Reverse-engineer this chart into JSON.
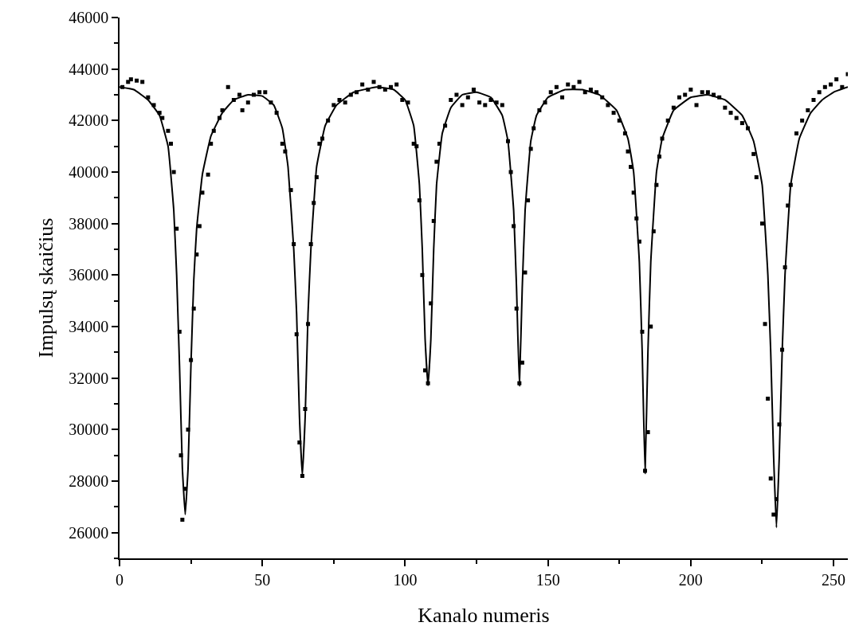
{
  "chart_data": {
    "type": "scatter",
    "xlabel": "Kanalo numeris",
    "ylabel": "Impulsų skaičius",
    "xlim": [
      0,
      255
    ],
    "ylim": [
      25000,
      46000
    ],
    "xticks": [
      0,
      50,
      100,
      150,
      200,
      250
    ],
    "yticks": [
      26000,
      28000,
      30000,
      32000,
      34000,
      36000,
      38000,
      40000,
      42000,
      44000,
      46000
    ],
    "series": [
      {
        "marker": "square",
        "color": "#000000",
        "x": [
          1,
          3,
          4,
          6,
          8,
          10,
          12,
          14,
          15,
          17,
          18,
          19,
          20,
          21,
          21.5,
          22,
          23,
          24,
          25,
          26,
          27,
          28,
          29,
          31,
          32,
          33,
          35,
          36,
          38,
          40,
          42,
          43,
          45,
          47,
          49,
          51,
          53,
          55,
          57,
          58,
          60,
          61,
          62,
          63,
          64,
          65,
          66,
          67,
          68,
          69,
          70,
          71,
          73,
          75,
          77,
          79,
          81,
          83,
          85,
          87,
          89,
          91,
          93,
          95,
          97,
          99,
          101,
          103,
          104,
          105,
          106,
          107,
          108,
          109,
          110,
          111,
          112,
          114,
          116,
          118,
          120,
          122,
          124,
          126,
          128,
          130,
          132,
          134,
          136,
          137,
          138,
          139,
          140,
          141,
          142,
          143,
          144,
          145,
          147,
          149,
          151,
          153,
          155,
          157,
          159,
          161,
          163,
          165,
          167,
          169,
          171,
          173,
          175,
          177,
          178,
          179,
          180,
          181,
          182,
          183,
          184,
          185,
          186,
          187,
          188,
          189,
          190,
          192,
          194,
          196,
          198,
          200,
          202,
          204,
          206,
          208,
          210,
          212,
          214,
          216,
          218,
          220,
          222,
          223,
          225,
          226,
          227,
          228,
          229,
          230,
          231,
          232,
          233,
          234,
          235,
          237,
          239,
          241,
          243,
          245,
          247,
          249,
          251,
          253,
          255
        ],
        "values": [
          43300,
          43500,
          43600,
          43550,
          43500,
          42900,
          42600,
          42300,
          42100,
          41600,
          41100,
          40000,
          37800,
          33800,
          29000,
          26500,
          27700,
          30000,
          32700,
          34700,
          36800,
          37900,
          39200,
          39900,
          41100,
          41600,
          42100,
          42400,
          43300,
          42800,
          43000,
          42400,
          42700,
          43000,
          43100,
          43100,
          42700,
          42300,
          41100,
          40800,
          39300,
          37200,
          33700,
          29500,
          28200,
          30800,
          34100,
          37200,
          38800,
          39800,
          41100,
          41300,
          42000,
          42600,
          42800,
          42700,
          43000,
          43100,
          43400,
          43200,
          43500,
          43300,
          43200,
          43300,
          43400,
          42800,
          42700,
          41100,
          41000,
          38900,
          36000,
          32300,
          31800,
          34900,
          38100,
          40400,
          41100,
          41800,
          42800,
          43000,
          42600,
          42900,
          43200,
          42700,
          42600,
          42800,
          42700,
          42600,
          41200,
          40000,
          37900,
          34700,
          31800,
          32600,
          36100,
          38900,
          40900,
          41700,
          42400,
          42700,
          43100,
          43300,
          42900,
          43400,
          43300,
          43500,
          43100,
          43200,
          43100,
          42900,
          42600,
          42300,
          42000,
          41500,
          40800,
          40200,
          39200,
          38200,
          37300,
          33800,
          28400,
          29900,
          34000,
          37700,
          39500,
          40600,
          41300,
          42000,
          42500,
          42900,
          43000,
          43200,
          42600,
          43100,
          43100,
          43000,
          42900,
          42500,
          42300,
          42100,
          41900,
          41700,
          40700,
          39800,
          38000,
          34100,
          31200,
          28100,
          26700,
          27300,
          30200,
          33100,
          36300,
          38700,
          39500,
          41500,
          42000,
          42400,
          42800,
          43100,
          43300,
          43400,
          43600,
          43300,
          43800
        ]
      },
      {
        "type": "line",
        "marker": "none",
        "line_style": "solid",
        "color": "#000000",
        "x": [
          0,
          5,
          10,
          14,
          17,
          19,
          20,
          21,
          22,
          23,
          24,
          25,
          26,
          27,
          29,
          32,
          36,
          40,
          45,
          50,
          54,
          57,
          59,
          61,
          62,
          63,
          64,
          65,
          66,
          67,
          69,
          72,
          76,
          82,
          90,
          96,
          100,
          103,
          105,
          106,
          107,
          108,
          109,
          110,
          111,
          113,
          116,
          120,
          125,
          130,
          134,
          136,
          138,
          139,
          140,
          141,
          142,
          144,
          146,
          150,
          156,
          162,
          168,
          174,
          178,
          180,
          182,
          183,
          184,
          185,
          186,
          188,
          190,
          194,
          200,
          206,
          212,
          218,
          222,
          225,
          227,
          228,
          229,
          230,
          231,
          232,
          233,
          235,
          238,
          242,
          246,
          250,
          255
        ],
        "values": [
          43300,
          43200,
          42800,
          42200,
          41000,
          38500,
          36000,
          32500,
          28500,
          26700,
          28500,
          32500,
          35800,
          37800,
          39900,
          41400,
          42300,
          42800,
          43000,
          42950,
          42600,
          41700,
          40200,
          37000,
          34500,
          30500,
          28200,
          30500,
          34500,
          37000,
          40200,
          41800,
          42600,
          43100,
          43300,
          43200,
          42800,
          41800,
          39500,
          37000,
          33500,
          31700,
          33500,
          37000,
          39500,
          41500,
          42500,
          43000,
          43100,
          42900,
          42200,
          41200,
          38500,
          35500,
          31700,
          35500,
          38500,
          41200,
          42200,
          42900,
          43200,
          43200,
          43000,
          42400,
          41300,
          40000,
          36500,
          33000,
          28300,
          33000,
          36500,
          40000,
          41300,
          42400,
          42900,
          43000,
          42800,
          42200,
          41200,
          39500,
          36000,
          33000,
          29000,
          26200,
          29000,
          33000,
          36000,
          39500,
          41300,
          42300,
          42800,
          43100,
          43300
        ]
      }
    ]
  }
}
